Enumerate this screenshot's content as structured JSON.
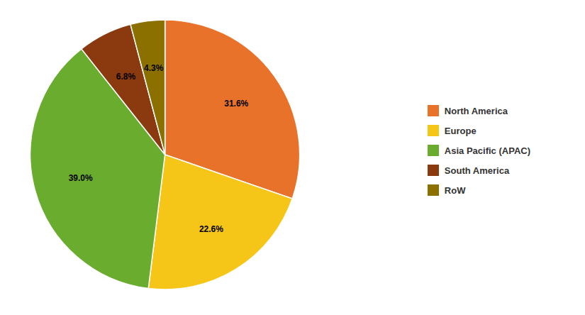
{
  "chart_data": {
    "type": "pie",
    "categories": [
      "North America",
      "Europe",
      "Asia Pacific (APAC)",
      "South America",
      "RoW"
    ],
    "values": [
      31.6,
      22.6,
      39.0,
      6.8,
      4.3
    ],
    "value_labels": [
      "31.6%",
      "22.6%",
      "39.0%",
      "6.8%",
      "4.3%"
    ],
    "colors": [
      "#E8722A",
      "#F5C518",
      "#6AAD2E",
      "#8B3A0F",
      "#8B7000"
    ],
    "data_labels": true,
    "legend": "right"
  }
}
